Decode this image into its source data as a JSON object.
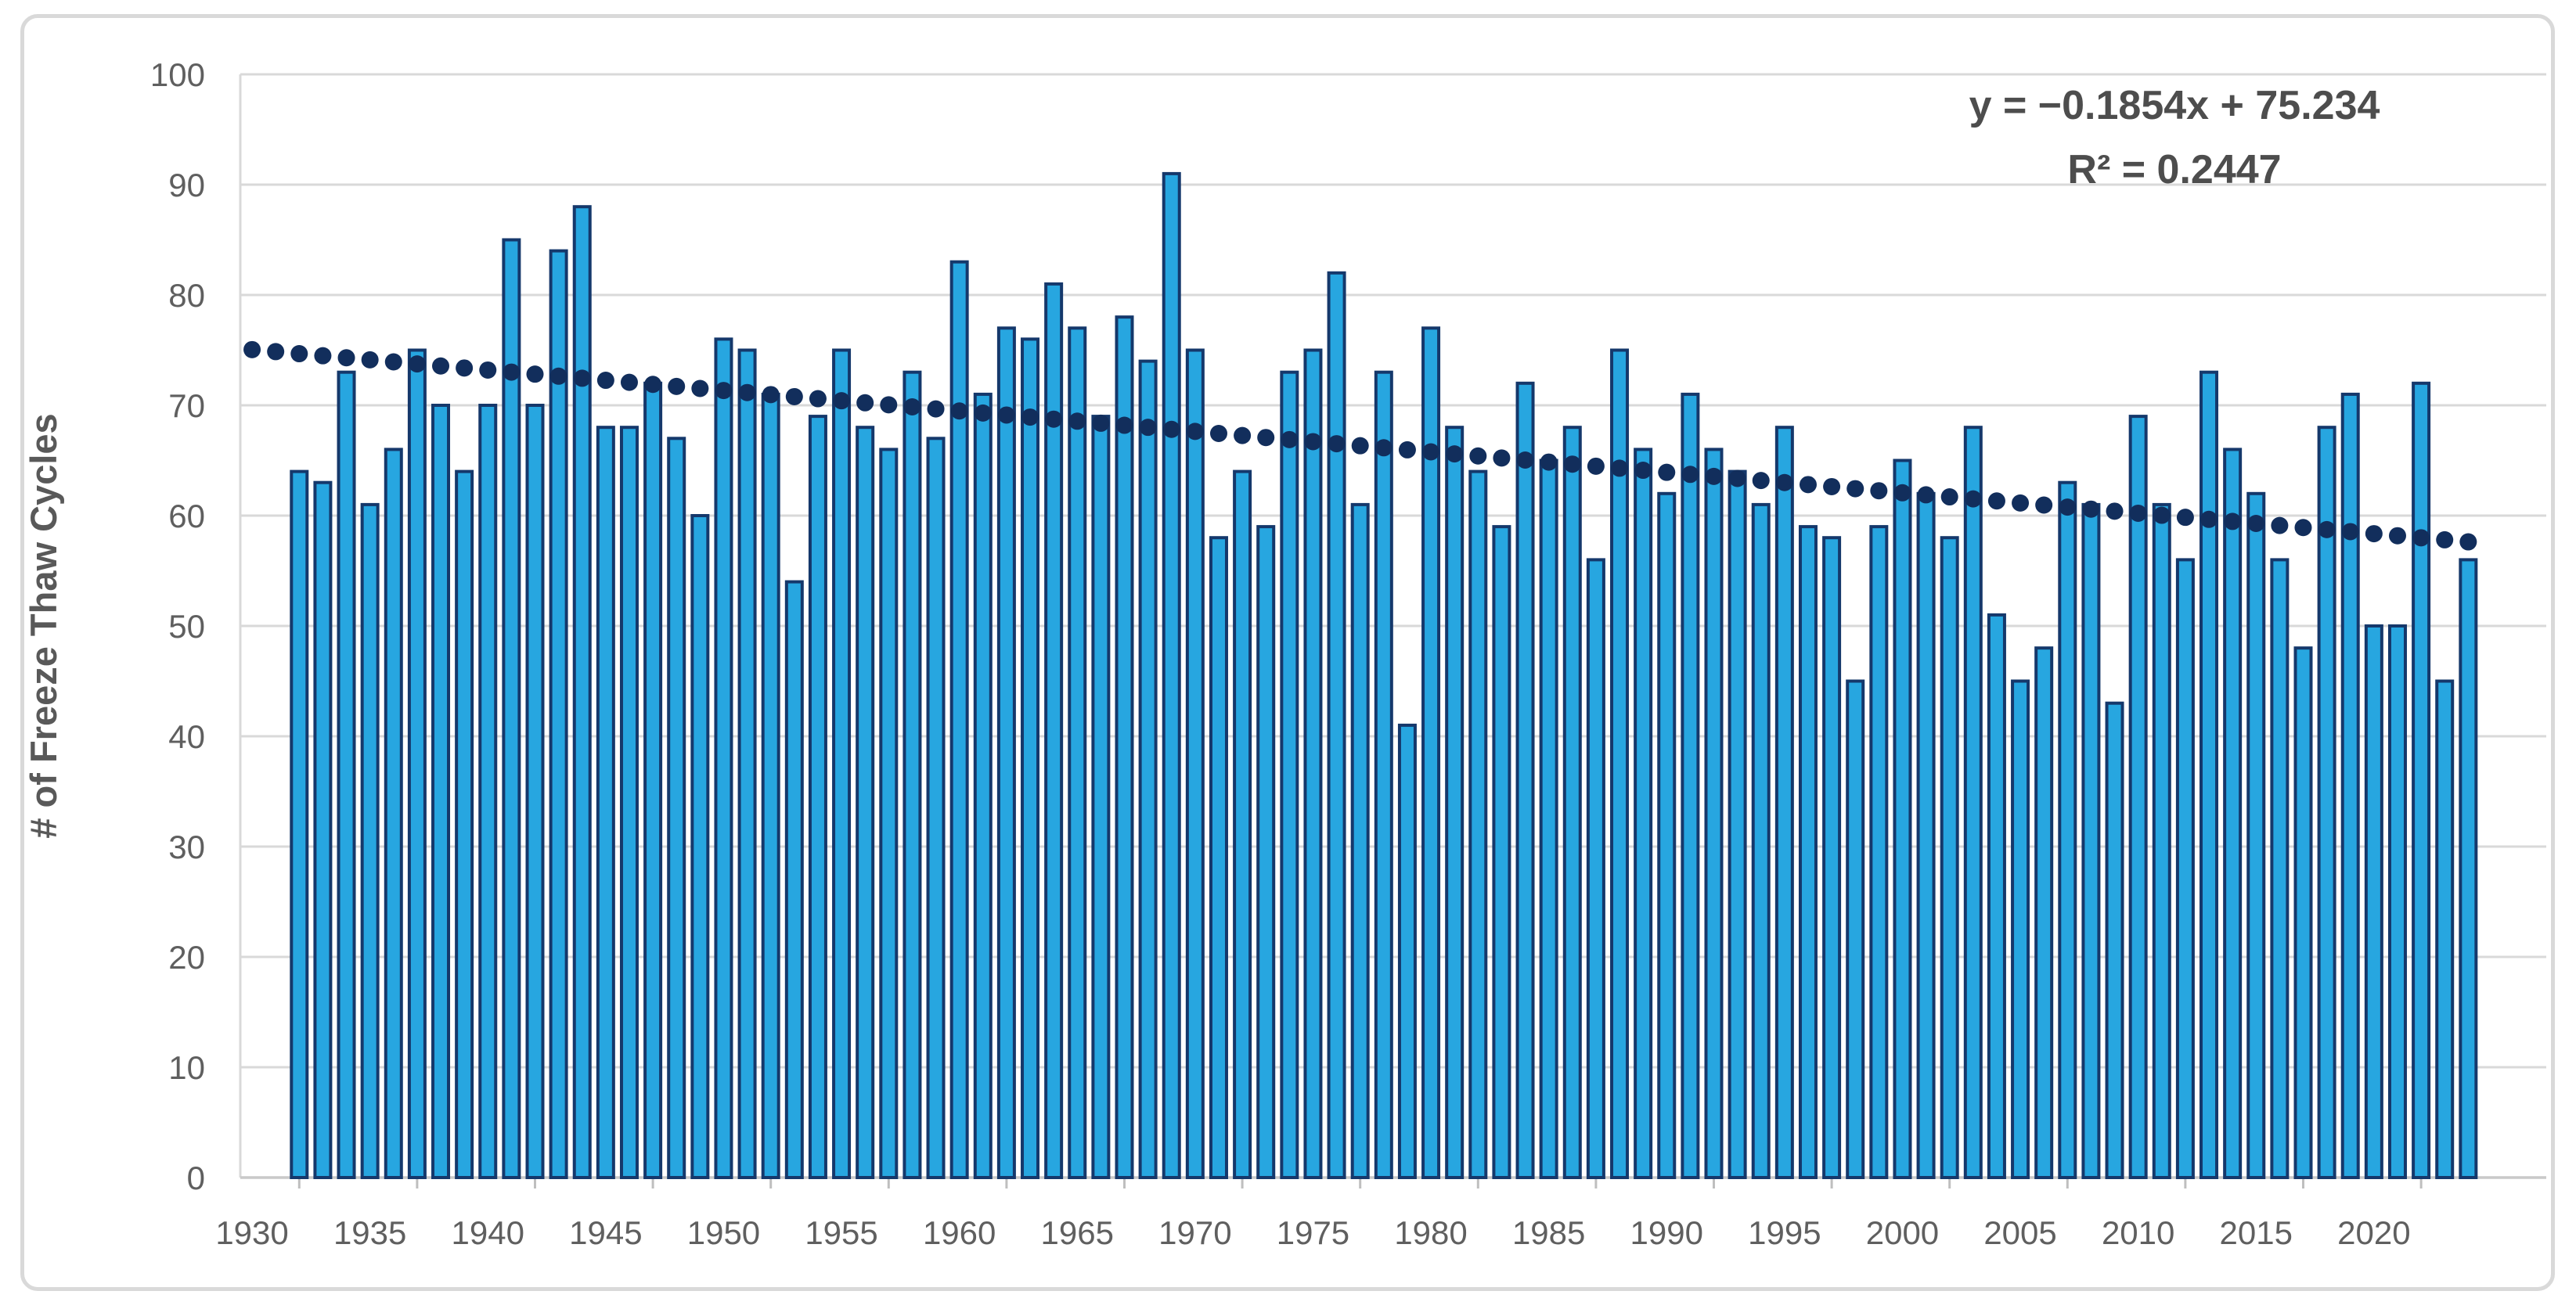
{
  "chart_data": {
    "type": "bar",
    "title": "",
    "xlabel": "",
    "ylabel": "# of Freeze Thaw Cycles",
    "ylim": [
      0,
      100
    ],
    "ytick_step": 10,
    "ytick_labels": [
      "0",
      "10",
      "20",
      "30",
      "40",
      "50",
      "60",
      "70",
      "80",
      "90",
      "100"
    ],
    "xtick_labels": [
      "1930",
      "1935",
      "1940",
      "1945",
      "1950",
      "1955",
      "1960",
      "1965",
      "1970",
      "1975",
      "1980",
      "1985",
      "1990",
      "1995",
      "2000",
      "2005",
      "2010",
      "2015",
      "2020"
    ],
    "axis_year_start": 1930,
    "axis_year_end": 2024,
    "grid": "horizontal",
    "legend": {
      "visible": false
    },
    "series_name": "# of Freeze Thaw Cycles",
    "years": [
      1932,
      1933,
      1934,
      1935,
      1936,
      1937,
      1938,
      1939,
      1940,
      1941,
      1942,
      1943,
      1944,
      1945,
      1946,
      1947,
      1948,
      1949,
      1950,
      1951,
      1952,
      1953,
      1954,
      1955,
      1956,
      1957,
      1958,
      1959,
      1960,
      1961,
      1962,
      1963,
      1964,
      1965,
      1966,
      1967,
      1968,
      1969,
      1970,
      1971,
      1972,
      1973,
      1974,
      1975,
      1976,
      1977,
      1978,
      1979,
      1980,
      1981,
      1982,
      1983,
      1984,
      1985,
      1986,
      1987,
      1988,
      1989,
      1990,
      1991,
      1992,
      1993,
      1994,
      1995,
      1996,
      1997,
      1998,
      1999,
      2000,
      2001,
      2002,
      2003,
      2004,
      2005,
      2006,
      2007,
      2008,
      2009,
      2010,
      2011,
      2012,
      2013,
      2014,
      2015,
      2016,
      2017,
      2018,
      2019,
      2020,
      2021,
      2022,
      2023,
      2024
    ],
    "values": [
      64,
      63,
      73,
      61,
      66,
      75,
      70,
      64,
      70,
      85,
      70,
      84,
      88,
      68,
      68,
      72,
      67,
      60,
      76,
      75,
      71,
      54,
      69,
      75,
      68,
      66,
      73,
      67,
      83,
      71,
      77,
      76,
      81,
      77,
      69,
      78,
      74,
      91,
      75,
      58,
      64,
      59,
      73,
      75,
      82,
      61,
      73,
      41,
      77,
      68,
      64,
      59,
      72,
      65,
      68,
      56,
      75,
      66,
      62,
      71,
      66,
      64,
      61,
      68,
      59,
      58,
      45,
      59,
      65,
      62,
      58,
      68,
      51,
      45,
      48,
      63,
      61,
      43,
      69,
      61,
      56,
      73,
      66,
      62,
      56,
      48,
      68,
      71,
      50,
      50,
      72,
      45,
      56
    ],
    "trendline": {
      "style": "dotted",
      "equation": "y = −0.1854x + 75.234",
      "r_squared": "R² = 0.2447",
      "slope": -0.1854,
      "intercept": 75.234,
      "x_index_base_year": 1929,
      "dot_year_start": 1930,
      "dot_year_end": 2024
    },
    "colors": {
      "bar_fill": "#27a6e0",
      "bar_border": "#15386b",
      "trend_dot": "#122e5c",
      "gridline": "#d9d9d9",
      "axis_line": "#c9c9c9",
      "tick_mark": "#bfbfbf",
      "tick_text": "#5f5f5f",
      "equation_text": "#4d4d4d",
      "frame_border": "#d9d9d9",
      "background": "#ffffff"
    }
  }
}
